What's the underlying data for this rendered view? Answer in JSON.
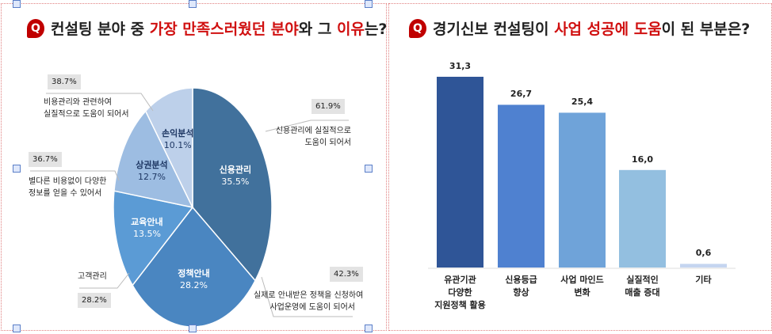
{
  "left": {
    "title_parts": [
      {
        "t": "컨설팅 분야 중 ",
        "red": false
      },
      {
        "t": "가장 만족스러웠던 분야",
        "red": true
      },
      {
        "t": "와 그 ",
        "red": false
      },
      {
        "t": "이유",
        "red": true
      },
      {
        "t": "는?",
        "red": false
      }
    ],
    "q_label": "Q",
    "callouts": {
      "c1": {
        "pct": "38.7%",
        "text": [
          "비용관리와 관련하여",
          "실질적으로 도움이 되어서"
        ]
      },
      "c2": {
        "pct": "36.7%",
        "text": [
          "별다른 비용없이 다양한",
          "정보를 얻을 수 있어서"
        ]
      },
      "c3": {
        "pct": "61.9%",
        "text": [
          "신용관리에 실질적으로",
          "도움이 되어서"
        ]
      },
      "c4": {
        "pct": "28.2%",
        "text": [
          "고객관리"
        ]
      },
      "c5": {
        "pct": "42.3%",
        "text": [
          "실제로 안내받은 정책을 신청하여",
          "사업운영에 도움이 되어서"
        ]
      }
    }
  },
  "right": {
    "title_parts": [
      {
        "t": "경기신보 컨설팅이 ",
        "red": false
      },
      {
        "t": "사업 성공에 도움",
        "red": true
      },
      {
        "t": "이 된 부분은?",
        "red": false
      }
    ],
    "q_label": "Q"
  },
  "chart_data": [
    {
      "type": "pie",
      "title": "컨설팅 분야 중 가장 만족스러웠던 분야와 그 이유는?",
      "slices": [
        {
          "label": "신용관리",
          "value": 35.5,
          "value_label": "35.5%",
          "color": "#41719c"
        },
        {
          "label": "정책안내",
          "value": 28.2,
          "value_label": "28.2%",
          "color": "#4a86c1"
        },
        {
          "label": "교육안내",
          "value": 13.5,
          "value_label": "13.5%",
          "color": "#5b9bd5"
        },
        {
          "label": "상권분석",
          "value": 12.7,
          "value_label": "12.7%",
          "color": "#9dbde2"
        },
        {
          "label": "손익분석",
          "value": 10.1,
          "value_label": "10.1%",
          "color": "#bdd0ea"
        }
      ]
    },
    {
      "type": "bar",
      "title": "경기신보 컨설팅이 사업 성공에 도움이 된 부분은?",
      "categories": [
        [
          "유관기관",
          "다양한",
          "지원정책 활용"
        ],
        [
          "신용등급",
          "향상"
        ],
        [
          "사업 마인드",
          "변화"
        ],
        [
          "실질적인",
          "매출 증대"
        ],
        [
          "기타"
        ]
      ],
      "values": [
        31.3,
        26.7,
        25.4,
        16.0,
        0.6
      ],
      "value_labels": [
        "31,3",
        "26,7",
        "25,4",
        "16,0",
        "0,6"
      ],
      "colors": [
        "#2f5597",
        "#4f81d0",
        "#6fa3d9",
        "#93bfe0",
        "#c5d5f0"
      ],
      "ylim": [
        0,
        31.3
      ]
    }
  ]
}
